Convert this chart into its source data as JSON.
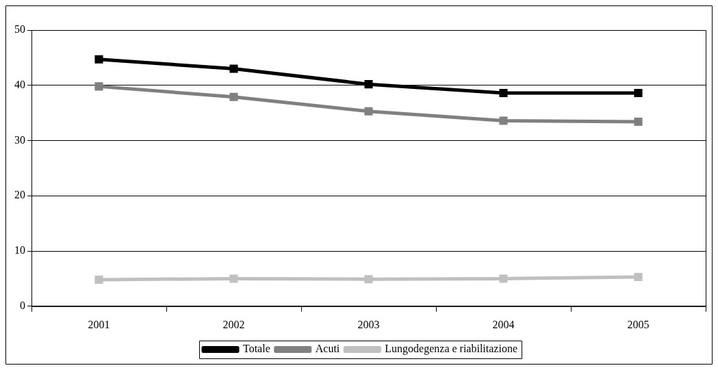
{
  "chart_data": {
    "type": "line",
    "categories": [
      "2001",
      "2002",
      "2003",
      "2004",
      "2005"
    ],
    "series": [
      {
        "name": "Totale",
        "color": "#000000",
        "values": [
          44.7,
          43.0,
          40.2,
          38.6,
          38.6
        ]
      },
      {
        "name": "Acuti",
        "color": "#808080",
        "values": [
          39.8,
          37.9,
          35.3,
          33.6,
          33.4
        ]
      },
      {
        "name": "Lungodegenza e riabilitazione",
        "color": "#c0c0c0",
        "values": [
          4.8,
          5.0,
          4.9,
          5.0,
          5.3
        ]
      }
    ],
    "ylim": [
      0,
      50
    ],
    "yticks": [
      0,
      10,
      20,
      30,
      40,
      50
    ],
    "grid": "y",
    "legend": "bottom",
    "marker": "square",
    "line_style": "solid"
  }
}
